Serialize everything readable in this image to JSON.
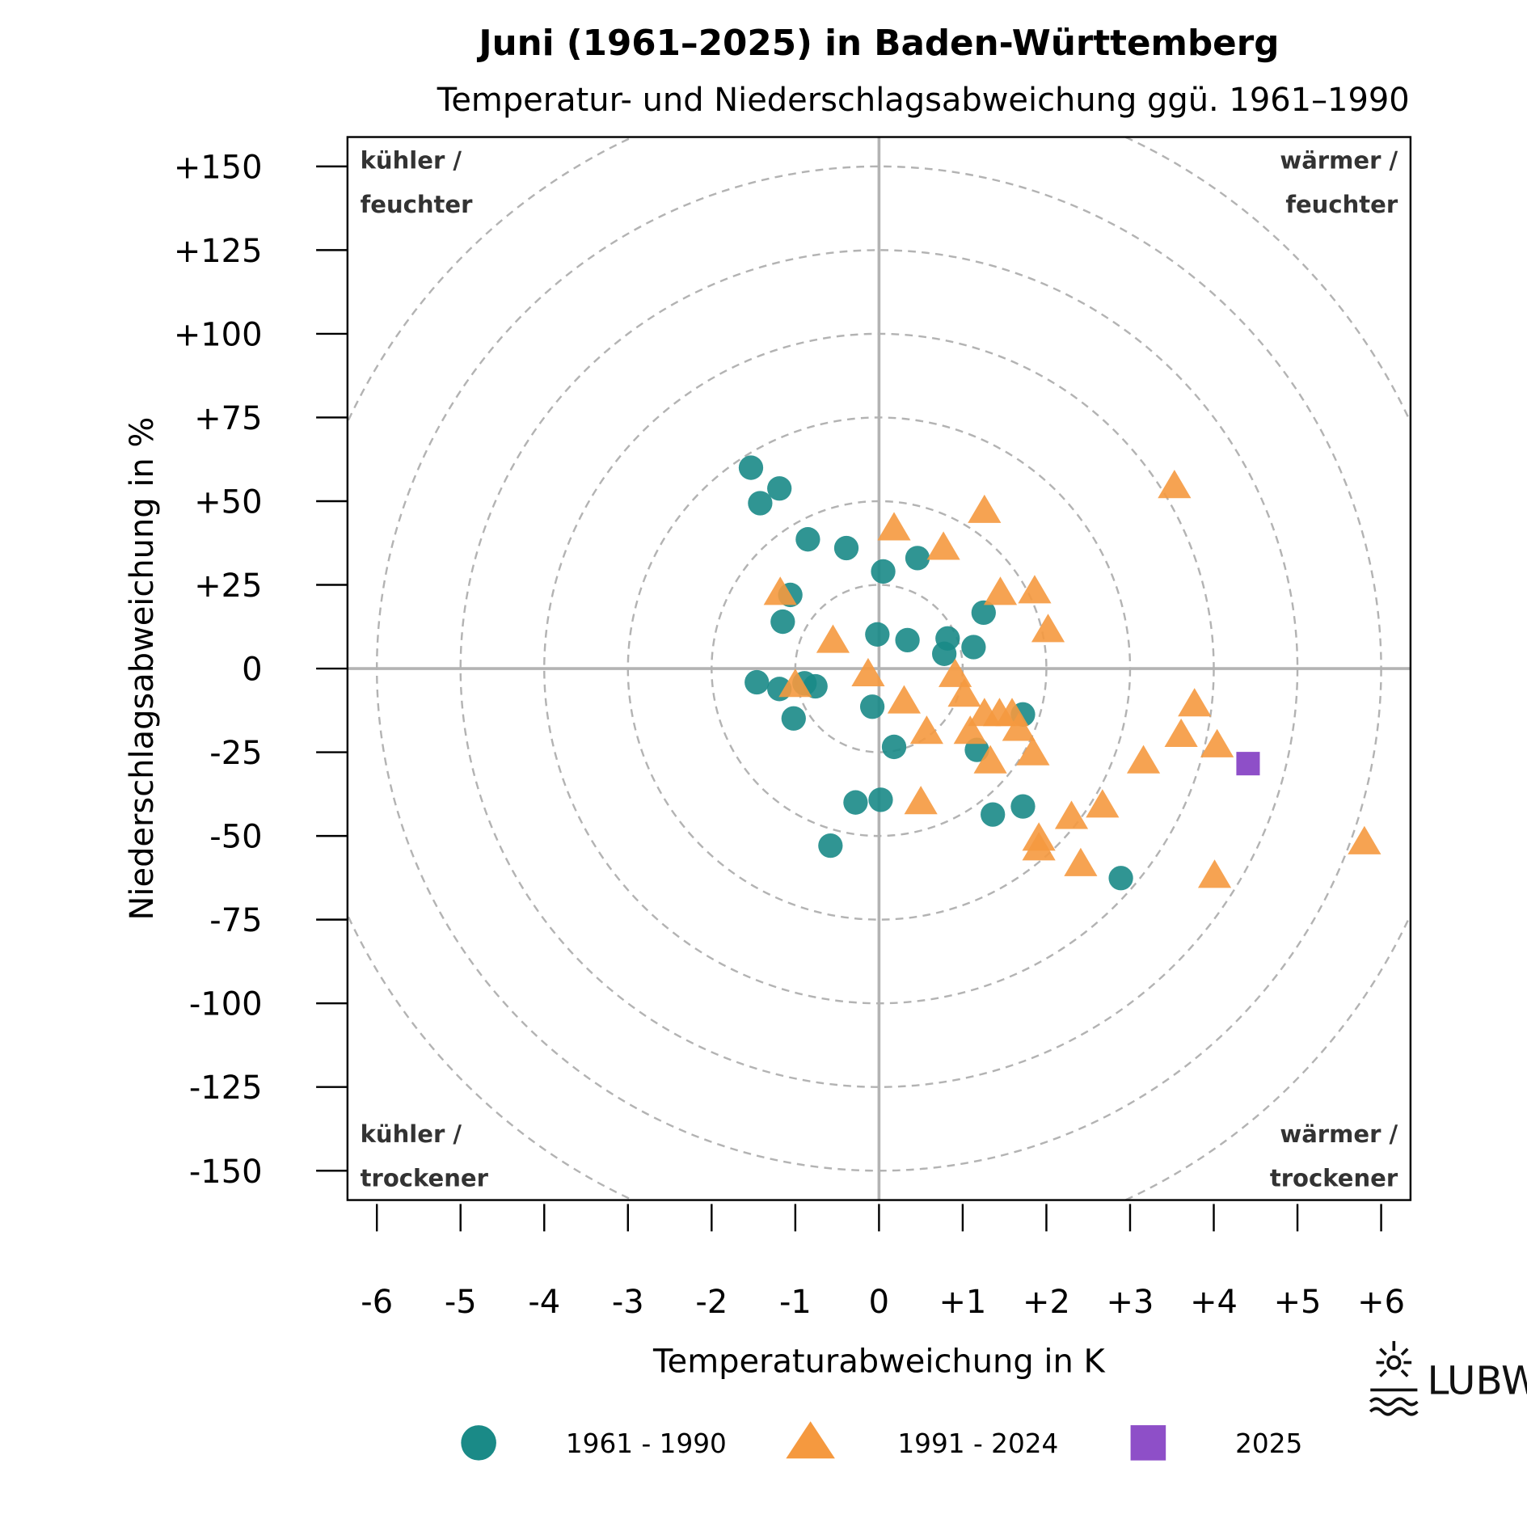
{
  "chart_data": {
    "type": "scatter",
    "title": "Juni (1961–2025) in Baden-Württemberg",
    "subtitle": "Temperatur- und Niederschlagsabweichung ggü. 1961–1990",
    "xlabel": "Temperaturabweichung in K",
    "ylabel": "Niederschlagsabweichung in %",
    "xlim": [
      -6.35,
      6.35
    ],
    "ylim": [
      -159,
      159
    ],
    "x_ticks": [
      "-6",
      "-5",
      "-4",
      "-3",
      "-2",
      "-1",
      "0",
      "+1",
      "+2",
      "+3",
      "+4",
      "+5",
      "+6"
    ],
    "x_tick_values": [
      -6,
      -5,
      -4,
      -3,
      -2,
      -1,
      0,
      1,
      2,
      3,
      4,
      5,
      6
    ],
    "y_ticks": [
      "+150",
      "+125",
      "+100",
      "+75",
      "+50",
      "+25",
      "0",
      "-25",
      "-50",
      "-75",
      "-100",
      "-125",
      "-150"
    ],
    "y_tick_values": [
      150,
      125,
      100,
      75,
      50,
      25,
      0,
      -25,
      -50,
      -75,
      -100,
      -125,
      -150
    ],
    "quadrant_labels": {
      "top_left": [
        "kühler /",
        "feuchter"
      ],
      "top_right": [
        "wärmer /",
        "feuchter"
      ],
      "bottom_left": [
        "kühler /",
        "trockener"
      ],
      "bottom_right": [
        "wärmer /",
        "trockener"
      ]
    },
    "legend_position": "bottom",
    "series": [
      {
        "name": "1961 - 1990",
        "marker": "circle",
        "color": "#1a8a87",
        "points": [
          [
            -1.53,
            60
          ],
          [
            -1.19,
            53.8
          ],
          [
            -1.42,
            49.4
          ],
          [
            -0.85,
            38.6
          ],
          [
            -0.39,
            36
          ],
          [
            0.05,
            29
          ],
          [
            0.46,
            33
          ],
          [
            -1.06,
            22
          ],
          [
            -1.15,
            14
          ],
          [
            1.25,
            16.7
          ],
          [
            -0.02,
            10.2
          ],
          [
            0.34,
            8.5
          ],
          [
            0.82,
            9
          ],
          [
            0.78,
            4.4
          ],
          [
            1.13,
            6.4
          ],
          [
            -1.46,
            -4.1
          ],
          [
            -1.19,
            -6.1
          ],
          [
            -0.89,
            -4.4
          ],
          [
            -0.76,
            -5.3
          ],
          [
            -0.08,
            -11.4
          ],
          [
            -1.02,
            -14.9
          ],
          [
            1.72,
            -13.7
          ],
          [
            0.18,
            -23.4
          ],
          [
            1.17,
            -24.3
          ],
          [
            -0.28,
            -40
          ],
          [
            0.02,
            -39.2
          ],
          [
            1.36,
            -43.6
          ],
          [
            1.72,
            -41.2
          ],
          [
            -0.58,
            -52.9
          ],
          [
            2.89,
            -62.6
          ]
        ]
      },
      {
        "name": "1991 - 2024",
        "marker": "triangle",
        "color": "#f5993f",
        "points": [
          [
            3.53,
            54.4
          ],
          [
            1.26,
            47
          ],
          [
            0.18,
            41.8
          ],
          [
            0.77,
            36
          ],
          [
            -1.18,
            22.5
          ],
          [
            1.45,
            22.5
          ],
          [
            1.86,
            23
          ],
          [
            2.02,
            11.4
          ],
          [
            -0.55,
            8.2
          ],
          [
            -0.13,
            -1.8
          ],
          [
            0.91,
            -2
          ],
          [
            1.02,
            -7.9
          ],
          [
            0.3,
            -9.9
          ],
          [
            -1.0,
            -5
          ],
          [
            3.77,
            -10.8
          ],
          [
            1.26,
            -13.7
          ],
          [
            1.44,
            -13.7
          ],
          [
            1.59,
            -13.7
          ],
          [
            1.09,
            -19
          ],
          [
            1.67,
            -18.1
          ],
          [
            0.57,
            -19
          ],
          [
            3.61,
            -19.9
          ],
          [
            4.04,
            -23
          ],
          [
            1.84,
            -25.4
          ],
          [
            1.33,
            -27.8
          ],
          [
            3.16,
            -27.8
          ],
          [
            0.5,
            -40
          ],
          [
            2.67,
            -41
          ],
          [
            2.3,
            -44.4
          ],
          [
            1.91,
            -50.9
          ],
          [
            1.91,
            -53.8
          ],
          [
            2.41,
            -58.5
          ],
          [
            4.01,
            -62
          ],
          [
            5.8,
            -52
          ]
        ]
      },
      {
        "name": "2025",
        "marker": "square",
        "color": "#8e4fc8",
        "points": [
          [
            4.41,
            -28.4
          ]
        ]
      }
    ]
  },
  "logo": {
    "text": "LUBW"
  }
}
